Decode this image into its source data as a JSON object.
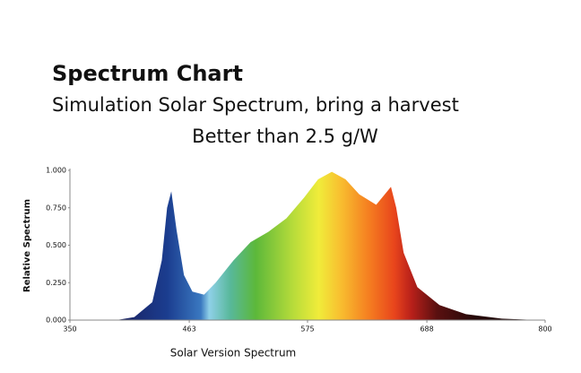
{
  "chart_data": {
    "type": "area",
    "title": "Spectrum Chart",
    "subtitle": "Simulation Solar Spectrum, bring a harvest",
    "subtitle2": "Better than 2.5 g/W",
    "x_label": "Solar Version Spectrum",
    "y_label": "Relative Spectrum",
    "x": [
      394,
      411,
      428,
      437,
      442,
      446,
      451,
      458,
      466,
      477,
      488,
      505,
      521,
      538,
      555,
      572,
      585,
      598,
      611,
      624,
      640,
      654,
      659,
      666,
      679,
      700,
      725,
      759,
      793
    ],
    "values": [
      0,
      0.02,
      0.12,
      0.4,
      0.75,
      0.86,
      0.6,
      0.3,
      0.19,
      0.17,
      0.25,
      0.4,
      0.52,
      0.59,
      0.68,
      0.82,
      0.94,
      0.99,
      0.94,
      0.84,
      0.77,
      0.89,
      0.75,
      0.45,
      0.22,
      0.1,
      0.04,
      0.01,
      0
    ],
    "xlim": [
      350,
      800
    ],
    "xticks": [
      350,
      463,
      575,
      688,
      800
    ],
    "ylim": [
      0,
      1
    ],
    "yticks": [
      {
        "value": 1,
        "label": "1.000"
      },
      {
        "value": 0.75,
        "label": "0.750"
      },
      {
        "value": 0.5,
        "label": "0.500"
      },
      {
        "value": 0.25,
        "label": "0.250"
      },
      {
        "value": 0,
        "label": "0.000"
      }
    ]
  }
}
